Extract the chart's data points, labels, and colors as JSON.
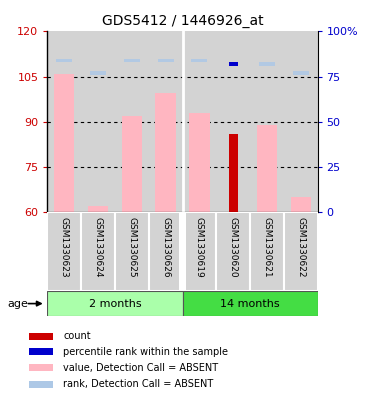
{
  "title": "GDS5412 / 1446926_at",
  "samples": [
    "GSM1330623",
    "GSM1330624",
    "GSM1330625",
    "GSM1330626",
    "GSM1330619",
    "GSM1330620",
    "GSM1330621",
    "GSM1330622"
  ],
  "ylim_left": [
    60,
    120
  ],
  "ylim_right": [
    0,
    100
  ],
  "yticks_left": [
    60,
    75,
    90,
    105,
    120
  ],
  "yticks_right": [
    0,
    25,
    50,
    75,
    100
  ],
  "ytick_labels_right": [
    "0",
    "25",
    "50",
    "75",
    "100%"
  ],
  "value_absent": [
    106.0,
    62.0,
    92.0,
    99.5,
    93.0,
    null,
    89.0,
    65.0
  ],
  "rank_absent": [
    84.0,
    null,
    84.0,
    84.0,
    84.0,
    null,
    82.0,
    null
  ],
  "count_value": [
    null,
    null,
    null,
    null,
    null,
    86.0,
    null,
    null
  ],
  "percentile_rank": [
    null,
    null,
    null,
    null,
    null,
    82.0,
    null,
    null
  ],
  "rank_absent_marker": [
    null,
    77.0,
    null,
    null,
    null,
    null,
    null,
    77.0
  ],
  "bar_bottom": 60,
  "color_absent_value": "#FFB6C1",
  "color_absent_rank": "#ADC8E6",
  "color_count": "#CC0000",
  "color_percentile": "#0000CC",
  "group1_label": "2 months",
  "group1_color": "#AAFFAA",
  "group2_label": "14 months",
  "group2_color": "#44DD44",
  "legend_items": [
    {
      "color": "#CC0000",
      "label": "count"
    },
    {
      "color": "#0000CC",
      "label": "percentile rank within the sample"
    },
    {
      "color": "#FFB6C1",
      "label": "value, Detection Call = ABSENT"
    },
    {
      "color": "#ADC8E6",
      "label": "rank, Detection Call = ABSENT"
    }
  ],
  "age_label": "age",
  "axis_color_left": "#CC0000",
  "axis_color_right": "#0000CC"
}
